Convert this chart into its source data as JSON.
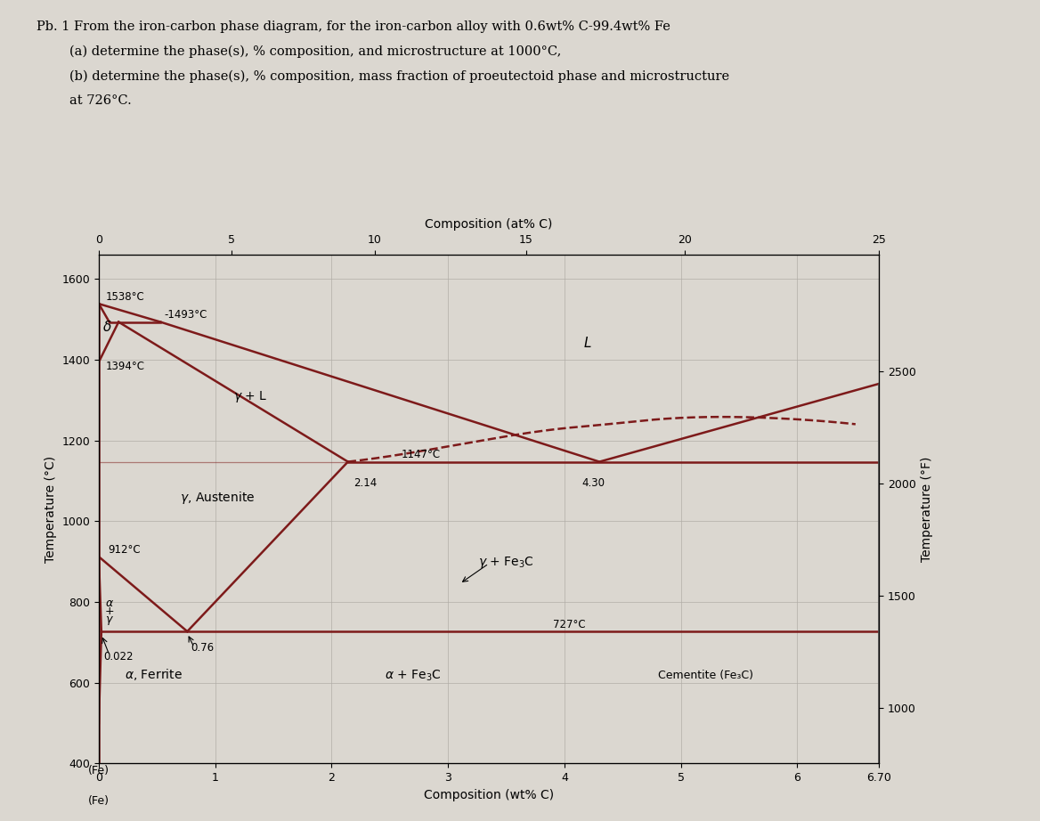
{
  "title_line1": "Pb. 1 From the iron-carbon phase diagram, for the iron-carbon alloy with 0.6wt% C-99.4wt% Fe",
  "title_line2": "        (a) determine the phase(s), % composition, and microstructure at 1000°C,",
  "title_line3": "        (b) determine the phase(s), % composition, mass fraction of proeutectoid phase and microstructure",
  "title_line4": "        at 726°C.",
  "xlabel": "Composition (wt% C)",
  "xlabel_top": "Composition (at% C)",
  "ylabel_left": "Temperature (°C)",
  "ylabel_right": "Temperature (°F)",
  "xlim": [
    0,
    6.7
  ],
  "ylim": [
    400,
    1660
  ],
  "xticks": [
    0,
    1,
    2,
    3,
    4,
    5,
    6,
    6.7
  ],
  "yticks_left": [
    400,
    600,
    800,
    1000,
    1200,
    1400,
    1600
  ],
  "background_color": "#dbd7d0",
  "phase_line_color": "#7d1a1a",
  "key_points": {
    "T_melt_Fe": 1538,
    "T_peritectic": 1493,
    "T_A4": 1394,
    "T_eutectic": 1147,
    "T_eutectoid": 727,
    "T_A3": 912,
    "C_peritectic_delta": 0.09,
    "C_peritectic_gamma": 0.17,
    "C_peritectic_liquid": 0.53,
    "C_eutectic": 4.3,
    "C_eutectic_gamma": 2.14,
    "C_eutectoid": 0.76,
    "C_ferrite_max": 0.022,
    "C_cementite": 6.7
  },
  "at_pct_ticks": [
    0,
    5,
    10,
    15,
    20,
    25
  ],
  "at_pct_positions": [
    0,
    1.14,
    2.37,
    3.67,
    5.03,
    6.7
  ],
  "rf_ticks_F": [
    1000,
    1500,
    2000,
    2500
  ]
}
